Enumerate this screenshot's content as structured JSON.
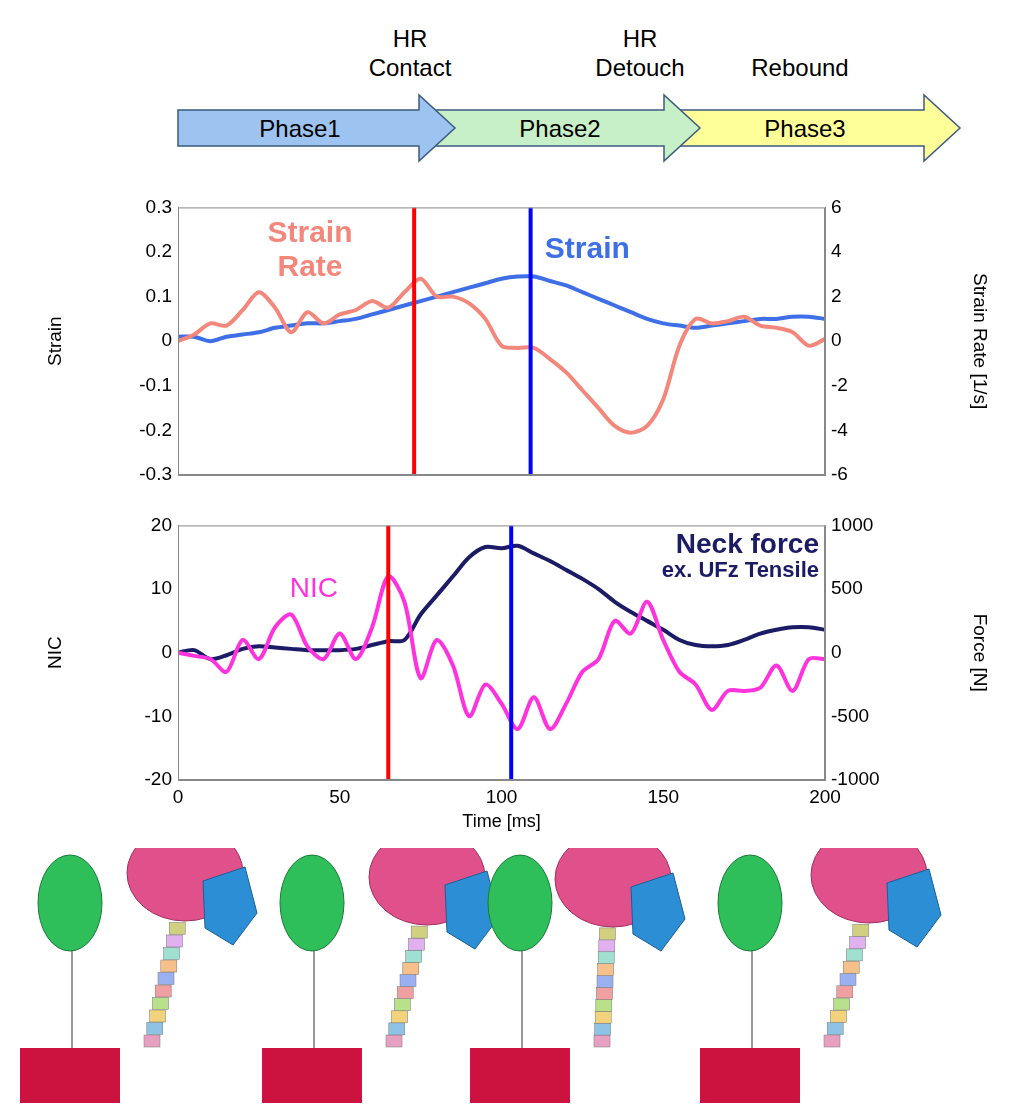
{
  "diagram": {
    "events": [
      {
        "label": [
          "HR",
          "Contact"
        ]
      },
      {
        "label": [
          "HR",
          "Detouch"
        ]
      },
      {
        "label": [
          "Rebound"
        ]
      }
    ],
    "phases": [
      {
        "label": "Phase1",
        "color": "#9dc3f0"
      },
      {
        "label": "Phase2",
        "color": "#c8f0c8"
      },
      {
        "label": "Phase3",
        "color": "#ffff99"
      }
    ]
  },
  "chart_data": [
    {
      "type": "line",
      "x": [
        0,
        5,
        10,
        15,
        20,
        25,
        30,
        35,
        40,
        45,
        50,
        55,
        60,
        65,
        70,
        75,
        80,
        85,
        90,
        95,
        100,
        105,
        110,
        115,
        120,
        125,
        130,
        135,
        140,
        145,
        150,
        155,
        160,
        165,
        170,
        175,
        180,
        185,
        190,
        195,
        200
      ],
      "xlim": [
        0,
        200
      ],
      "tick_labels": "y",
      "ylabel": "Strain",
      "ylim": [
        -0.3,
        0.3
      ],
      "yticks": [
        -0.3,
        -0.2,
        -0.1,
        0,
        0.1,
        0.2,
        0.3
      ],
      "y2label": "Strain Rate [1/s]",
      "y2lim": [
        -6,
        6
      ],
      "y2ticks": [
        -6,
        -4,
        -2,
        0,
        2,
        4,
        6
      ],
      "grid": false,
      "series": [
        {
          "name": "Strain Rate",
          "color": "#f4877c",
          "axis": "y2",
          "values": [
            0,
            0.3,
            0.8,
            0.7,
            1.4,
            2.2,
            1.5,
            0.4,
            1.3,
            0.8,
            1.2,
            1.4,
            1.8,
            1.5,
            2.2,
            2.8,
            2.0,
            2.0,
            1.7,
            1.0,
            -0.2,
            -0.3,
            -0.3,
            -0.8,
            -1.4,
            -2.2,
            -3.0,
            -3.8,
            -4.1,
            -3.8,
            -2.6,
            -0.2,
            1.0,
            0.8,
            0.9,
            1.1,
            0.7,
            0.6,
            0.4,
            -0.2,
            0.1
          ]
        },
        {
          "name": "Strain",
          "color": "#3f6fe6",
          "axis": "y",
          "values": [
            0.01,
            0.01,
            0,
            0.01,
            0.015,
            0.02,
            0.03,
            0.035,
            0.04,
            0.04,
            0.045,
            0.05,
            0.06,
            0.07,
            0.08,
            0.09,
            0.1,
            0.11,
            0.12,
            0.13,
            0.14,
            0.145,
            0.145,
            0.135,
            0.125,
            0.11,
            0.095,
            0.08,
            0.065,
            0.05,
            0.04,
            0.035,
            0.03,
            0.035,
            0.04,
            0.045,
            0.05,
            0.05,
            0.055,
            0.055,
            0.05
          ]
        }
      ],
      "vlines": [
        {
          "x": 73,
          "color": "#ff0000"
        },
        {
          "x": 109,
          "color": "#0000ff"
        }
      ]
    },
    {
      "type": "line",
      "x": [
        0,
        5,
        10,
        15,
        20,
        25,
        30,
        35,
        40,
        45,
        50,
        55,
        60,
        65,
        70,
        75,
        80,
        85,
        90,
        95,
        100,
        105,
        110,
        115,
        120,
        125,
        130,
        135,
        140,
        145,
        150,
        155,
        160,
        165,
        170,
        175,
        180,
        185,
        190,
        195,
        200
      ],
      "xlabel": "Time [ms]",
      "xlim": [
        0,
        200
      ],
      "xticks": [
        0,
        50,
        100,
        150,
        200
      ],
      "ylabel": "NIC",
      "ylim": [
        -20,
        20
      ],
      "yticks": [
        -20,
        -10,
        0,
        10,
        20
      ],
      "y2label": "Force [N]",
      "y2lim": [
        -1000,
        1000
      ],
      "y2ticks": [
        -1000,
        -500,
        0,
        500,
        1000
      ],
      "grid": false,
      "series": [
        {
          "name": "NIC",
          "color": "#ff33dd",
          "axis": "y",
          "values": [
            0,
            -0.5,
            -1,
            -3,
            2,
            -1,
            4,
            6,
            1,
            -1,
            3,
            -1,
            4,
            12,
            8,
            -4,
            2,
            -2,
            -10,
            -5,
            -8,
            -12,
            -7,
            -12,
            -8,
            -3,
            -1,
            5,
            3,
            8,
            2,
            -3,
            -5,
            -9,
            -6,
            -6,
            -5.5,
            -2,
            -6,
            -1,
            -1
          ]
        },
        {
          "name": "Neck force",
          "color": "#1b1b66",
          "axis": "y2",
          "values": [
            0,
            20,
            -50,
            -20,
            30,
            50,
            40,
            30,
            20,
            20,
            20,
            30,
            60,
            90,
            100,
            300,
            450,
            600,
            750,
            830,
            820,
            840,
            780,
            720,
            650,
            580,
            500,
            400,
            320,
            250,
            180,
            100,
            60,
            50,
            60,
            100,
            150,
            180,
            200,
            200,
            180
          ]
        }
      ],
      "annotations": [
        {
          "text": "ex. UFz Tensile",
          "color": "#1b1b66"
        }
      ],
      "vlines": [
        {
          "x": 65,
          "color": "#ff0000"
        },
        {
          "x": 103,
          "color": "#0000ff"
        }
      ]
    }
  ]
}
